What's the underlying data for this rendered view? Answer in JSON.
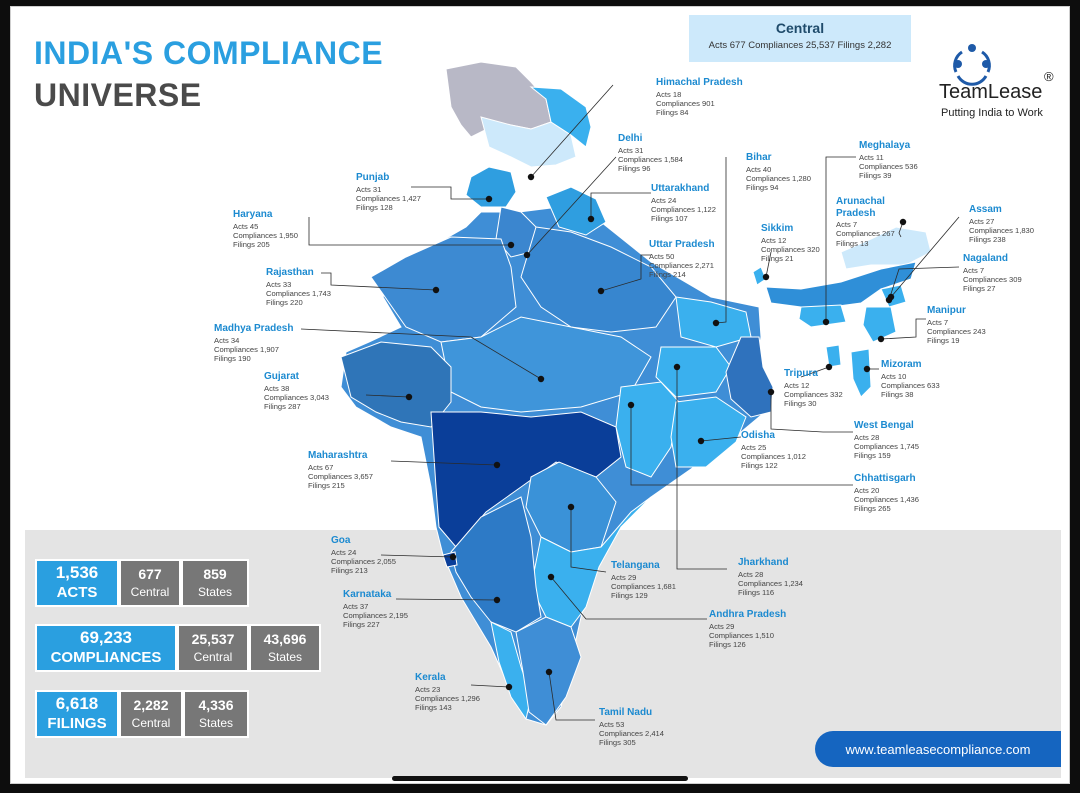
{
  "header": {
    "title_line1": "INDIA'S COMPLIANCE",
    "title_line2": "UNIVERSE"
  },
  "central": {
    "name": "Central",
    "stats": "Acts 677  Compliances 25,537  Filings 2,282"
  },
  "logo": {
    "name": "TeamLease",
    "registered": "®",
    "tagline": "Putting India to Work"
  },
  "states": [
    {
      "name": "Himachal Pradesh",
      "acts": "Acts 18",
      "compliances": "Compliances 901",
      "filings": "Filings 84"
    },
    {
      "name": "Delhi",
      "acts": "Acts 31",
      "compliances": "Compliances 1,584",
      "filings": "Filings 96"
    },
    {
      "name": "Punjab",
      "acts": "Acts 31",
      "compliances": "Compliances 1,427",
      "filings": "Filings 128"
    },
    {
      "name": "Uttarakhand",
      "acts": "Acts 24",
      "compliances": "Compliances 1,122",
      "filings": "Filings 107"
    },
    {
      "name": "Haryana",
      "acts": "Acts 45",
      "compliances": "Compliances 1,950",
      "filings": "Filings 205"
    },
    {
      "name": "Uttar Pradesh",
      "acts": "Acts 50",
      "compliances": "Compliances 2,271",
      "filings": "Filings 214"
    },
    {
      "name": "Rajasthan",
      "acts": "Acts 33",
      "compliances": "Compliances 1,743",
      "filings": "Filings 220"
    },
    {
      "name": "Madhya Pradesh",
      "acts": "Acts 34",
      "compliances": "Compliances 1,907",
      "filings": "Filings 190"
    },
    {
      "name": "Gujarat",
      "acts": "Acts 38",
      "compliances": "Compliances 3,043",
      "filings": "Filings 287"
    },
    {
      "name": "Maharashtra",
      "acts": "Acts 67",
      "compliances": "Compliances 3,657",
      "filings": "Filings 215"
    },
    {
      "name": "Goa",
      "acts": "Acts 24",
      "compliances": "Compliances 2,055",
      "filings": "Filings 213"
    },
    {
      "name": "Karnataka",
      "acts": "Acts 37",
      "compliances": "Compliances 2,195",
      "filings": "Filings 227"
    },
    {
      "name": "Kerala",
      "acts": "Acts 23",
      "compliances": "Compliances 1,296",
      "filings": "Filings 143"
    },
    {
      "name": "Tamil Nadu",
      "acts": "Acts 53",
      "compliances": "Compliances 2,414",
      "filings": "Filings 305"
    },
    {
      "name": "Andhra Pradesh",
      "acts": "Acts 29",
      "compliances": "Compliances 1,510",
      "filings": "Filings 126"
    },
    {
      "name": "Telangana",
      "acts": "Acts 29",
      "compliances": "Compliances 1,681",
      "filings": "Filings 129"
    },
    {
      "name": "Jharkhand",
      "acts": "Acts 28",
      "compliances": "Compliances 1,234",
      "filings": "Filings 116"
    },
    {
      "name": "Chhattisgarh",
      "acts": "Acts 20",
      "compliances": "Compliances 1,436",
      "filings": "Filings 265"
    },
    {
      "name": "Odisha",
      "acts": "Acts 25",
      "compliances": "Compliances 1,012",
      "filings": "Filings 122"
    },
    {
      "name": "West Bengal",
      "acts": "Acts 28",
      "compliances": "Compliances 1,745",
      "filings": "Filings 159"
    },
    {
      "name": "Bihar",
      "acts": "Acts 40",
      "compliances": "Compliances 1,280",
      "filings": "Filings 94"
    },
    {
      "name": "Sikkim",
      "acts": "Acts 12",
      "compliances": "Compliances 320",
      "filings": "Filings 21"
    },
    {
      "name": "Meghalaya",
      "acts": "Acts 11",
      "compliances": "Compliances 536",
      "filings": "Filings 39"
    },
    {
      "name": "Arunachal\nPradesh",
      "acts": "Acts 7",
      "compliances": "Compliances 267",
      "filings": "Filings 13"
    },
    {
      "name": "Assam",
      "acts": "Acts 27",
      "compliances": "Compliances 1,830",
      "filings": "Filings 238"
    },
    {
      "name": "Nagaland",
      "acts": "Acts 7",
      "compliances": "Compliances 309",
      "filings": "Filings 27"
    },
    {
      "name": "Manipur",
      "acts": "Acts 7",
      "compliances": "Compliances 243",
      "filings": "Filings 19"
    },
    {
      "name": "Mizoram",
      "acts": "Acts 10",
      "compliances": "Compliances 633",
      "filings": "Filings 38"
    },
    {
      "name": "Tripura",
      "acts": "Acts 12",
      "compliances": "Compliances 332",
      "filings": "Filings 30"
    }
  ],
  "summary": {
    "acts": {
      "total": "1,536",
      "label": "ACTS",
      "central": "677",
      "central_label": "Central",
      "states": "859",
      "states_label": "States"
    },
    "compliances": {
      "total": "69,233",
      "label": "COMPLIANCES",
      "central": "25,537",
      "central_label": "Central",
      "states": "43,696",
      "states_label": "States"
    },
    "filings": {
      "total": "6,618",
      "label": "FILINGS",
      "central": "2,282",
      "central_label": "Central",
      "states": "4,336",
      "states_label": "States"
    }
  },
  "footer": {
    "url": "www.teamleasecompliance.com"
  },
  "colors": {
    "accent": "#2a9fe0",
    "dark_blue": "#0a3e99",
    "grey_box": "#777777",
    "url_pill": "#1565c0"
  }
}
